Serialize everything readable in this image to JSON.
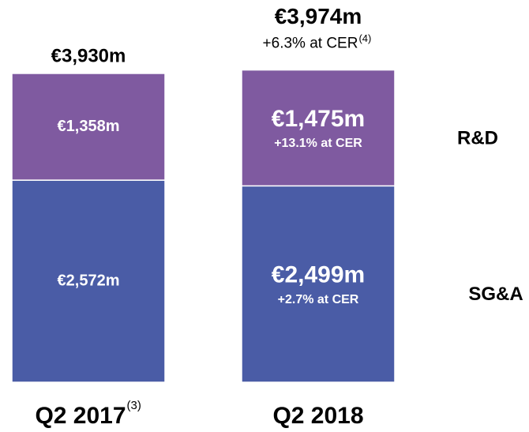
{
  "chart_data": {
    "type": "stacked_bar",
    "categories": [
      "Q2 2017",
      "Q2 2018"
    ],
    "category_notes": [
      "(3)",
      null
    ],
    "series": [
      {
        "name": "SG&A",
        "color": "#4a5ca6",
        "values": [
          2572,
          2499
        ],
        "value_labels": [
          "€2,572m",
          "€2,499m"
        ],
        "notes": [
          null,
          "+2.7% at CER"
        ]
      },
      {
        "name": "R&D",
        "color": "#7f5aa0",
        "values": [
          1358,
          1475
        ],
        "value_labels": [
          "€1,358m",
          "€1,475m"
        ],
        "notes": [
          null,
          "+13.1% at CER"
        ]
      }
    ],
    "totals": {
      "values": [
        3930,
        3974
      ],
      "value_labels": [
        "€3,930m",
        "€3,974m"
      ],
      "notes": [
        null,
        "+6.3% at CER"
      ],
      "note_refs": [
        null,
        "(4)"
      ]
    }
  }
}
